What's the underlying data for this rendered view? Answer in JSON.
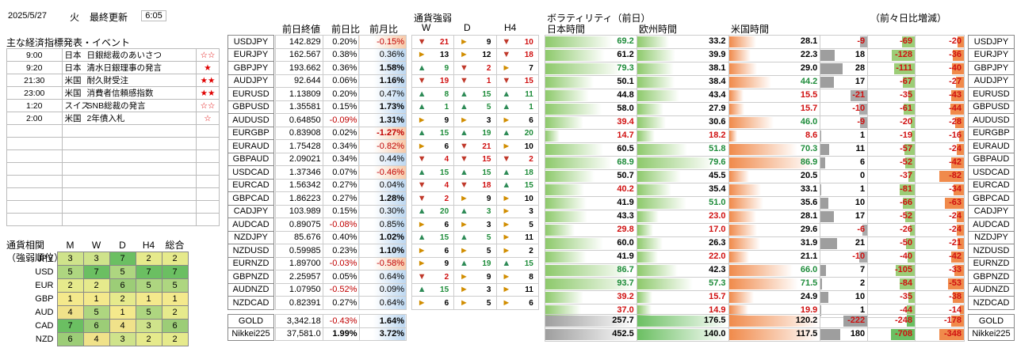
{
  "header": {
    "date": "2025/5/27",
    "weekday": "火",
    "updated_label": "最終更新",
    "time": "6:05"
  },
  "events": {
    "title": "主な経済指標発表・イベント",
    "rows": [
      {
        "time": "9:00",
        "country": "日本",
        "name": "日銀総裁のあいさつ",
        "stars": "☆☆"
      },
      {
        "time": "9:20",
        "country": "日本",
        "name": "清水日銀理事の発言",
        "stars": "★"
      },
      {
        "time": "21:30",
        "country": "米国",
        "name": "耐久財受注",
        "stars": "★★"
      },
      {
        "time": "23:00",
        "country": "米国",
        "name": "消費者信頼感指数",
        "stars": "★★"
      },
      {
        "time": "1:20",
        "country": "スイス",
        "name": "SNB総裁の発言",
        "stars": "☆☆"
      },
      {
        "time": "2:00",
        "country": "米国",
        "name": "2年債入札",
        "stars": "☆"
      }
    ]
  },
  "rank_title": [
    "通貨相関",
    "（強弱順位）"
  ],
  "rank_headers": [
    "M",
    "W",
    "D",
    "H4",
    "総合"
  ],
  "rank_colors": {
    "1": "#f4e98c",
    "2": "#e6ea8c",
    "3": "#cfe38b",
    "4": "#f0e28a",
    "5": "#aed680",
    "6": "#9ccd77",
    "7": "#6bbf62"
  },
  "rank": [
    {
      "ccy": "JPY",
      "v": [
        "3",
        "3",
        "7",
        "2",
        "2"
      ]
    },
    {
      "ccy": "USD",
      "v": [
        "5",
        "7",
        "5",
        "7",
        "7"
      ]
    },
    {
      "ccy": "EUR",
      "v": [
        "2",
        "2",
        "6",
        "5",
        "5"
      ]
    },
    {
      "ccy": "GBP",
      "v": [
        "1",
        "1",
        "2",
        "1",
        "1"
      ]
    },
    {
      "ccy": "AUD",
      "v": [
        "4",
        "5",
        "1",
        "5",
        "2"
      ]
    },
    {
      "ccy": "CAD",
      "v": [
        "7",
        "6",
        "4",
        "3",
        "6"
      ]
    },
    {
      "ccy": "NZD",
      "v": [
        "6",
        "4",
        "3",
        "2",
        "2"
      ]
    }
  ],
  "price_headers": [
    "前日終値",
    "前日比",
    "前月比"
  ],
  "strength_title": "通貨強弱",
  "strength_headers": [
    "W",
    "D",
    "H4"
  ],
  "vol_title": "ボラティリティ（前日）",
  "vol_headers": [
    "日本時間",
    "欧州時間",
    "米国時間"
  ],
  "diff_title": "（前々日比増減）",
  "rows": [
    {
      "pair": "USDJPY",
      "close": "142.829",
      "dd": "0.20%",
      "mm": "-0.15%",
      "w": [
        "dn",
        "21"
      ],
      "d": [
        "fl",
        "9"
      ],
      "h": [
        "dn",
        "10"
      ],
      "jp": "69.2",
      "eu": "33.2",
      "us": "28.1",
      "jpf": 0.74,
      "euf": 0.35,
      "usf": 0.3,
      "dj": "-9",
      "de": "-69",
      "du": "-20"
    },
    {
      "pair": "EURJPY",
      "close": "162.567",
      "dd": "0.38%",
      "mm": "0.36%",
      "w": [
        "fl",
        "13"
      ],
      "d": [
        "fl",
        "12"
      ],
      "h": [
        "dn",
        "18"
      ],
      "jp": "61.2",
      "eu": "39.9",
      "us": "22.3",
      "jpf": 0.65,
      "euf": 0.42,
      "usf": 0.24,
      "dj": "18",
      "de": "-128",
      "du": "-36"
    },
    {
      "pair": "GBPJPY",
      "close": "193.662",
      "dd": "0.36%",
      "mm": "1.58%",
      "w": [
        "up",
        "9"
      ],
      "d": [
        "dn",
        "2"
      ],
      "h": [
        "fl",
        "7"
      ],
      "jp": "79.3",
      "eu": "38.1",
      "us": "29.0",
      "jpf": 0.84,
      "euf": 0.4,
      "usf": 0.31,
      "dj": "28",
      "de": "-111",
      "du": "-40"
    },
    {
      "pair": "AUDJPY",
      "close": "92.644",
      "dd": "0.06%",
      "mm": "1.16%",
      "w": [
        "dn",
        "19"
      ],
      "d": [
        "dn",
        "1"
      ],
      "h": [
        "dn",
        "15"
      ],
      "jp": "50.1",
      "eu": "38.4",
      "us": "44.2",
      "jpf": 0.53,
      "euf": 0.41,
      "usf": 0.47,
      "dj": "17",
      "de": "-67",
      "du": "-27"
    },
    {
      "pair": "EURUSD",
      "close": "1.13809",
      "dd": "0.20%",
      "mm": "0.47%",
      "w": [
        "up",
        "8"
      ],
      "d": [
        "up",
        "15"
      ],
      "h": [
        "up",
        "11"
      ],
      "jp": "44.8",
      "eu": "43.4",
      "us": "15.5",
      "jpf": 0.48,
      "euf": 0.46,
      "usf": 0.16,
      "dj": "-21",
      "de": "-35",
      "du": "-43"
    },
    {
      "pair": "GBPUSD",
      "close": "1.35581",
      "dd": "0.15%",
      "mm": "1.73%",
      "w": [
        "up",
        "1"
      ],
      "d": [
        "up",
        "5"
      ],
      "h": [
        "up",
        "1"
      ],
      "jp": "58.0",
      "eu": "27.9",
      "us": "15.7",
      "jpf": 0.62,
      "euf": 0.29,
      "usf": 0.17,
      "dj": "-10",
      "de": "-61",
      "du": "-44"
    },
    {
      "pair": "AUDUSD",
      "close": "0.64850",
      "dd": "-0.09%",
      "mm": "1.31%",
      "w": [
        "fl",
        "9"
      ],
      "d": [
        "fl",
        "3"
      ],
      "h": [
        "fl",
        "6"
      ],
      "jp": "39.4",
      "eu": "30.6",
      "us": "46.0",
      "jpf": 0.42,
      "euf": 0.32,
      "usf": 0.49,
      "dj": "-9",
      "de": "-20",
      "du": "-28"
    },
    {
      "pair": "EURGBP",
      "close": "0.83908",
      "dd": "0.02%",
      "mm": "-1.27%",
      "w": [
        "up",
        "15"
      ],
      "d": [
        "up",
        "19"
      ],
      "h": [
        "up",
        "20"
      ],
      "jp": "14.7",
      "eu": "18.2",
      "us": "8.6",
      "jpf": 0.16,
      "euf": 0.19,
      "usf": 0.09,
      "dj": "1",
      "de": "-19",
      "du": "-16"
    },
    {
      "pair": "EURAUD",
      "close": "1.75428",
      "dd": "0.34%",
      "mm": "-0.82%",
      "w": [
        "fl",
        "6"
      ],
      "d": [
        "dn",
        "21"
      ],
      "h": [
        "fl",
        "10"
      ],
      "jp": "60.5",
      "eu": "51.8",
      "us": "70.3",
      "jpf": 0.64,
      "euf": 0.55,
      "usf": 0.75,
      "dj": "11",
      "de": "-57",
      "du": "-24"
    },
    {
      "pair": "GBPAUD",
      "close": "2.09021",
      "dd": "0.34%",
      "mm": "0.44%",
      "w": [
        "dn",
        "4"
      ],
      "d": [
        "dn",
        "15"
      ],
      "h": [
        "dn",
        "2"
      ],
      "jp": "68.9",
      "eu": "79.6",
      "us": "86.9",
      "jpf": 0.73,
      "euf": 0.85,
      "usf": 0.92,
      "dj": "6",
      "de": "-52",
      "du": "-42"
    },
    {
      "pair": "USDCAD",
      "close": "1.37346",
      "dd": "0.07%",
      "mm": "-0.46%",
      "w": [
        "up",
        "15"
      ],
      "d": [
        "up",
        "15"
      ],
      "h": [
        "up",
        "18"
      ],
      "jp": "50.7",
      "eu": "45.5",
      "us": "20.5",
      "jpf": 0.54,
      "euf": 0.48,
      "usf": 0.22,
      "dj": "0",
      "de": "-37",
      "du": "-82"
    },
    {
      "pair": "EURCAD",
      "close": "1.56342",
      "dd": "0.27%",
      "mm": "0.04%",
      "w": [
        "dn",
        "4"
      ],
      "d": [
        "dn",
        "18"
      ],
      "h": [
        "up",
        "15"
      ],
      "jp": "40.2",
      "eu": "35.4",
      "us": "33.1",
      "jpf": 0.43,
      "euf": 0.38,
      "usf": 0.35,
      "dj": "1",
      "de": "-81",
      "du": "-34"
    },
    {
      "pair": "GBPCAD",
      "close": "1.86223",
      "dd": "0.27%",
      "mm": "1.28%",
      "w": [
        "dn",
        "2"
      ],
      "d": [
        "fl",
        "9"
      ],
      "h": [
        "fl",
        "10"
      ],
      "jp": "41.9",
      "eu": "51.0",
      "us": "35.6",
      "jpf": 0.45,
      "euf": 0.54,
      "usf": 0.38,
      "dj": "10",
      "de": "-66",
      "du": "-63"
    },
    {
      "pair": "CADJPY",
      "close": "103.989",
      "dd": "0.15%",
      "mm": "0.30%",
      "w": [
        "up",
        "20"
      ],
      "d": [
        "up",
        "3"
      ],
      "h": [
        "fl",
        "3"
      ],
      "jp": "43.3",
      "eu": "23.0",
      "us": "28.1",
      "jpf": 0.46,
      "euf": 0.24,
      "usf": 0.3,
      "dj": "17",
      "de": "-52",
      "du": "-24"
    },
    {
      "pair": "AUDCAD",
      "close": "0.89075",
      "dd": "-0.08%",
      "mm": "0.85%",
      "w": [
        "fl",
        "6"
      ],
      "d": [
        "fl",
        "3"
      ],
      "h": [
        "fl",
        "5"
      ],
      "jp": "29.8",
      "eu": "17.0",
      "us": "29.6",
      "jpf": 0.32,
      "euf": 0.18,
      "usf": 0.31,
      "dj": "-6",
      "de": "-26",
      "du": "-24"
    },
    {
      "pair": "NZDJPY",
      "close": "85.676",
      "dd": "0.40%",
      "mm": "1.02%",
      "w": [
        "up",
        "15"
      ],
      "d": [
        "up",
        "5"
      ],
      "h": [
        "fl",
        "11"
      ],
      "jp": "60.0",
      "eu": "26.3",
      "us": "31.9",
      "jpf": 0.64,
      "euf": 0.28,
      "usf": 0.34,
      "dj": "21",
      "de": "-50",
      "du": "-21"
    },
    {
      "pair": "NZDUSD",
      "close": "0.59985",
      "dd": "0.23%",
      "mm": "1.10%",
      "w": [
        "fl",
        "6"
      ],
      "d": [
        "fl",
        "5"
      ],
      "h": [
        "fl",
        "2"
      ],
      "jp": "41.9",
      "eu": "22.0",
      "us": "21.1",
      "jpf": 0.45,
      "euf": 0.23,
      "usf": 0.22,
      "dj": "-10",
      "de": "-40",
      "du": "-42"
    },
    {
      "pair": "EURNZD",
      "close": "1.89700",
      "dd": "-0.03%",
      "mm": "-0.58%",
      "w": [
        "fl",
        "9"
      ],
      "d": [
        "up",
        "19"
      ],
      "h": [
        "up",
        "15"
      ],
      "jp": "86.7",
      "eu": "42.3",
      "us": "66.0",
      "jpf": 0.92,
      "euf": 0.45,
      "usf": 0.7,
      "dj": "7",
      "de": "-105",
      "du": "-33"
    },
    {
      "pair": "GBPNZD",
      "close": "2.25957",
      "dd": "0.05%",
      "mm": "0.64%",
      "w": [
        "dn",
        "2"
      ],
      "d": [
        "fl",
        "9"
      ],
      "h": [
        "fl",
        "8"
      ],
      "jp": "93.7",
      "eu": "57.3",
      "us": "71.5",
      "jpf": 1.0,
      "euf": 0.61,
      "usf": 0.76,
      "dj": "2",
      "de": "-84",
      "du": "-53"
    },
    {
      "pair": "AUDNZD",
      "close": "1.07950",
      "dd": "-0.52%",
      "mm": "0.09%",
      "w": [
        "up",
        "15"
      ],
      "d": [
        "fl",
        "3"
      ],
      "h": [
        "fl",
        "11"
      ],
      "jp": "39.2",
      "eu": "15.7",
      "us": "24.9",
      "jpf": 0.42,
      "euf": 0.17,
      "usf": 0.27,
      "dj": "10",
      "de": "-35",
      "du": "-38"
    },
    {
      "pair": "NZDCAD",
      "close": "0.82391",
      "dd": "0.27%",
      "mm": "0.64%",
      "w": [
        "fl",
        "6"
      ],
      "d": [
        "fl",
        "5"
      ],
      "h": [
        "fl",
        "6"
      ],
      "jp": "37.0",
      "eu": "14.9",
      "us": "19.9",
      "jpf": 0.39,
      "euf": 0.16,
      "usf": 0.21,
      "dj": "1",
      "de": "-44",
      "du": "-14"
    }
  ],
  "bottom": [
    {
      "pair": "GOLD",
      "close": "3,342.18",
      "dd": "-0.43%",
      "mm": "1.64%",
      "jp": "257.7",
      "eu": "176.5",
      "us": "120.2",
      "dj": "-222",
      "de": "-248",
      "du": "-178"
    },
    {
      "pair": "Nikkei225",
      "close": "37,581.0",
      "dd": "1.99%",
      "mm": "3.72%",
      "jp": "452.5",
      "eu": "140.0",
      "us": "117.5",
      "dj": "180",
      "de": "-708",
      "du": "-348"
    }
  ]
}
